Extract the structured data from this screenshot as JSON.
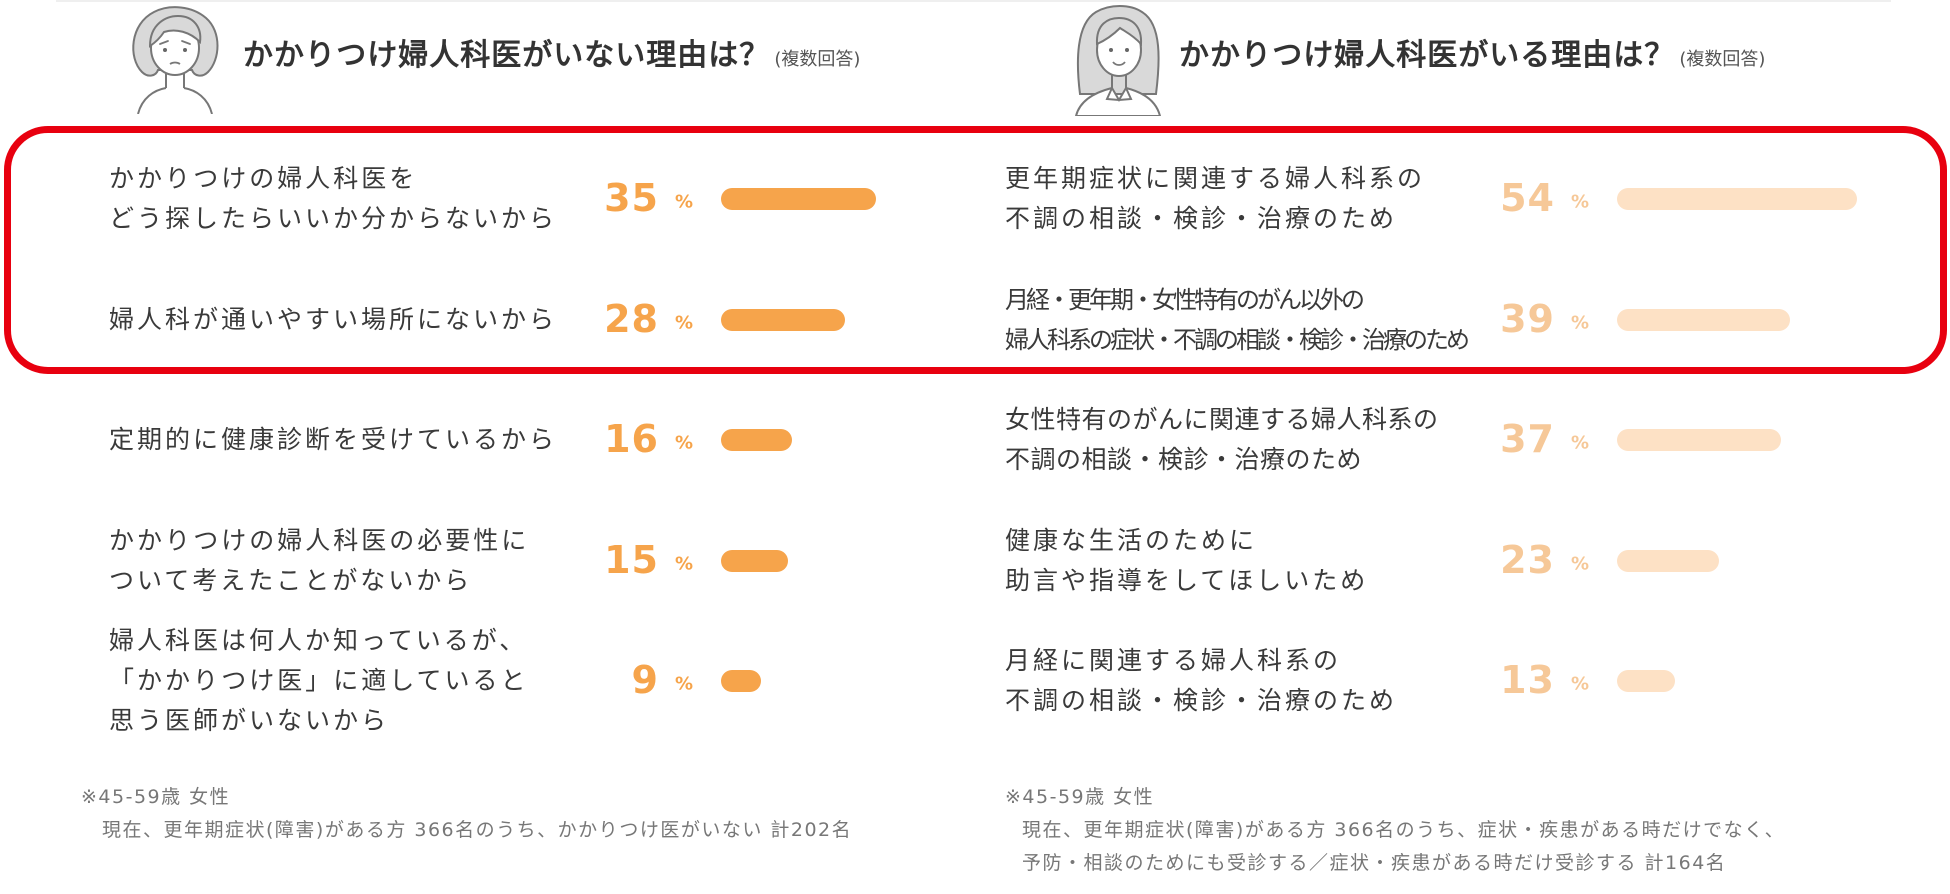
{
  "chart_data": [
    {
      "type": "bar",
      "orientation": "horizontal",
      "title": "かかりつけ婦人科医がいない理由は？",
      "subtitle": "(複数回答)",
      "categories": [
        [
          "かかりつけの婦人科医を",
          "どう探したらいいか分からないから"
        ],
        [
          "婦人科が通いやすい場所にないから"
        ],
        [
          "定期的に健康診断を受けているから"
        ],
        [
          "かかりつけの婦人科医の必要性に",
          "ついて考えたことがないから"
        ],
        [
          "婦人科医は何人か知っているが、",
          "「かかりつけ医」に適していると",
          "思う医師がいないから"
        ]
      ],
      "values": [
        35,
        28,
        16,
        15,
        9
      ],
      "unit": "%",
      "notes": [
        "※45-59歳 女性",
        "現在、更年期症状(障害)がある方 366名のうち、かかりつけ医がいない 計202名"
      ]
    },
    {
      "type": "bar",
      "orientation": "horizontal",
      "title": "かかりつけ婦人科医がいる理由は？",
      "subtitle": "(複数回答)",
      "categories": [
        [
          "更年期症状に関連する婦人科系の",
          "不調の相談・検診・治療のため"
        ],
        [
          "月経・更年期・女性特有のがん以外の",
          "婦人科系の症状・不調の相談・検診・治療のため"
        ],
        [
          "女性特有のがんに関連する婦人科系の",
          "不調の相談・検診・治療のため"
        ],
        [
          "健康な生活のために",
          "助言や指導をしてほしいため"
        ],
        [
          "月経に関連する婦人科系の",
          "不調の相談・検診・治療のため"
        ]
      ],
      "values": [
        54,
        39,
        37,
        23,
        13
      ],
      "unit": "%",
      "notes": [
        "※45-59歳 女性",
        "現在、更年期症状(障害)がある方 366名のうち、症状・疾患がある時だけでなく、",
        "予防・相談のためにも受診する／症状・疾患がある時だけ受診する 計164名"
      ]
    }
  ],
  "icons": {
    "left_avatar": "worried-woman-icon",
    "right_avatar": "smiling-woman-icon"
  },
  "colors": {
    "text": "#3a3a3a",
    "note": "#777777",
    "left_value": "#f6a44b",
    "left_bar": "#f6a44b",
    "right_value": "#f6c898",
    "right_bar": "#fde1c5",
    "highlight": "#e8000f"
  }
}
